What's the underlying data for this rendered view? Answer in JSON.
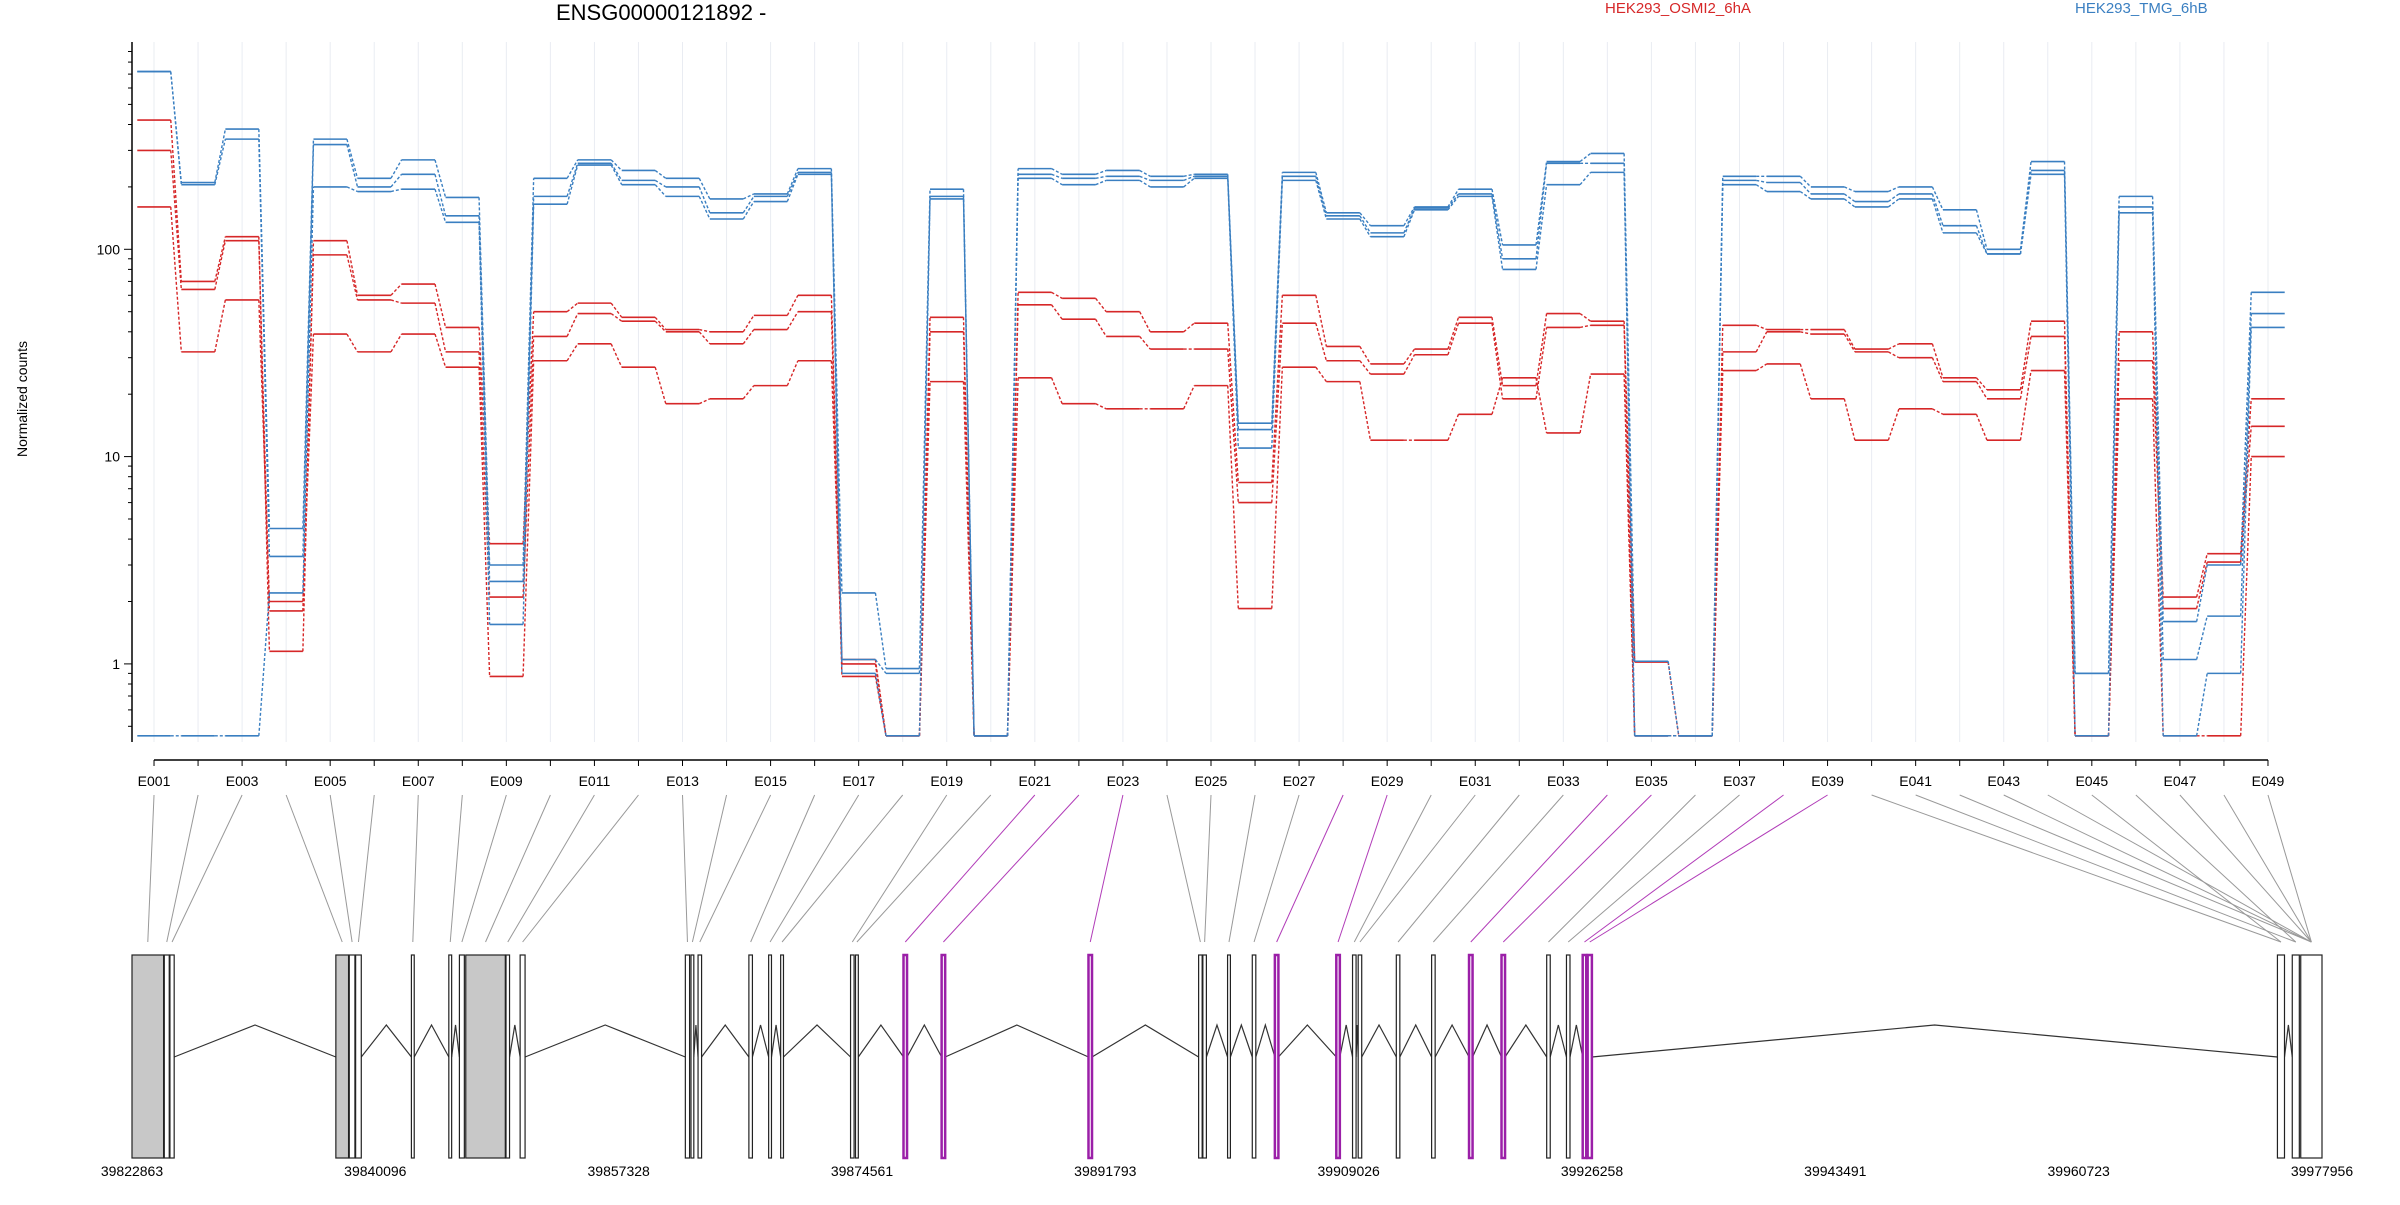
{
  "chart_data": {
    "type": "line",
    "title": "ENSG00000121892 -",
    "ylabel": "Normalized counts",
    "yscale": "log",
    "ylim": [
      0.42,
      1000
    ],
    "yticks": [
      "1",
      "10",
      "100"
    ],
    "yticks_values": [
      1,
      10,
      100
    ],
    "legend_position": "top",
    "legend": [
      {
        "name": "HEK293_OSMI2_6hA",
        "color": "#d62728"
      },
      {
        "name": "HEK293_TMG_6hB",
        "color": "#3a7fc1"
      }
    ],
    "exons": [
      "E001",
      "E002",
      "E003",
      "E004",
      "E005",
      "E006",
      "E007",
      "E008",
      "E009",
      "E010",
      "E011",
      "E012",
      "E013",
      "E014",
      "E015",
      "E016",
      "E017",
      "E018",
      "E019",
      "E020",
      "E021",
      "E022",
      "E023",
      "E024",
      "E025",
      "E026",
      "E027",
      "E028",
      "E029",
      "E030",
      "E031",
      "E032",
      "E033",
      "E034",
      "E035",
      "E036",
      "E037",
      "E038",
      "E039",
      "E040",
      "E041",
      "E042",
      "E043",
      "E044",
      "E045",
      "E046",
      "E047",
      "E048",
      "E049"
    ],
    "xtick_labels": [
      "E001",
      "E003",
      "E005",
      "E007",
      "E009",
      "E011",
      "E013",
      "E015",
      "E017",
      "E019",
      "E021",
      "E023",
      "E025",
      "E027",
      "E029",
      "E031",
      "E033",
      "E035",
      "E037",
      "E039",
      "E041",
      "E043",
      "E045",
      "E047",
      "E049"
    ],
    "series": [
      {
        "group": "HEK293_OSMI2_6hA",
        "color": "#d62728",
        "values": [
          420,
          70,
          115,
          1.15,
          110,
          60,
          68,
          42,
          3.8,
          50,
          55,
          47,
          41,
          40,
          48,
          60,
          1.05,
          0.45,
          47,
          0.45,
          62,
          58,
          50,
          40,
          44,
          7.5,
          60,
          34,
          28,
          33,
          47,
          22,
          49,
          45,
          1.02,
          0.45,
          43,
          41,
          41,
          33,
          35,
          24,
          21,
          45,
          0.45,
          40,
          2.1,
          3.4,
          19
        ]
      },
      {
        "group": "HEK293_OSMI2_6hA",
        "color": "#d62728",
        "values": [
          300,
          64,
          110,
          1.8,
          94,
          57,
          55,
          32,
          2.1,
          38,
          49,
          45,
          40,
          35,
          41,
          50,
          0.87,
          0.45,
          40,
          0.45,
          54,
          46,
          38,
          33,
          33,
          6,
          44,
          29,
          25,
          31,
          44,
          19,
          42,
          43,
          0.45,
          0.45,
          32,
          40,
          39,
          32,
          30,
          23,
          19,
          38,
          0.45,
          29,
          1.85,
          3.1,
          14
        ]
      },
      {
        "group": "HEK293_OSMI2_6hA",
        "color": "#d62728",
        "values": [
          160,
          32,
          57,
          2,
          39,
          32,
          39,
          27,
          0.87,
          29,
          35,
          27,
          18,
          19,
          22,
          29,
          1,
          0.45,
          23,
          0.45,
          24,
          18,
          17,
          17,
          22,
          1.85,
          27,
          23,
          12,
          12,
          16,
          24,
          13,
          25,
          0.45,
          0.45,
          26,
          28,
          19,
          12,
          17,
          16,
          12,
          26,
          0.45,
          19,
          0.45,
          0.45,
          10
        ]
      },
      {
        "group": "HEK293_TMG_6hB",
        "color": "#3a7fc1",
        "values": [
          720,
          210,
          380,
          4.5,
          340,
          220,
          270,
          178,
          3,
          220,
          270,
          240,
          220,
          175,
          185,
          245,
          2.2,
          0.95,
          195,
          0.45,
          245,
          230,
          240,
          225,
          230,
          14.5,
          235,
          150,
          130,
          160,
          195,
          105,
          265,
          290,
          1.03,
          0.45,
          225,
          225,
          200,
          190,
          200,
          155,
          100,
          265,
          0.9,
          180,
          1.6,
          3,
          62
        ]
      },
      {
        "group": "HEK293_TMG_6hB",
        "color": "#3a7fc1",
        "values": [
          720,
          205,
          340,
          3.3,
          320,
          200,
          230,
          145,
          2.5,
          180,
          260,
          215,
          200,
          150,
          180,
          235,
          1.05,
          0.9,
          180,
          0.45,
          230,
          220,
          225,
          215,
          225,
          13.5,
          225,
          145,
          120,
          158,
          185,
          90,
          260,
          260,
          0.45,
          0.45,
          215,
          210,
          185,
          170,
          185,
          130,
          95,
          240,
          0.9,
          160,
          1.05,
          1.7,
          49
        ]
      },
      {
        "group": "HEK293_TMG_6hB",
        "color": "#3a7fc1",
        "values": [
          0.45,
          0.45,
          0.45,
          2.2,
          200,
          190,
          195,
          135,
          1.55,
          165,
          255,
          205,
          180,
          140,
          170,
          230,
          0.9,
          0.45,
          175,
          0.45,
          220,
          205,
          215,
          200,
          220,
          11,
          215,
          140,
          115,
          155,
          180,
          80,
          205,
          235,
          0.45,
          0.45,
          205,
          190,
          175,
          160,
          175,
          120,
          95,
          230,
          0.45,
          150,
          0.45,
          0.9,
          42
        ]
      }
    ],
    "gene_model": {
      "coordinate_labels": [
        "39822863",
        "39840096",
        "39857328",
        "39874561",
        "39891793",
        "39909026",
        "39926258",
        "39943491",
        "39960723",
        "39977956"
      ],
      "coordinate_range": [
        39822863,
        39977956
      ]
    }
  }
}
